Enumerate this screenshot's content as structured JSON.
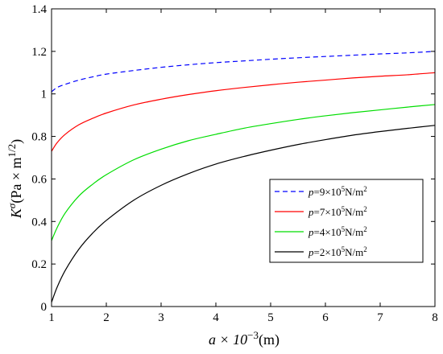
{
  "chart_data": {
    "type": "line",
    "xlabel": {
      "prefix": "a × 10",
      "exp": "−3",
      "suffix": "(m)"
    },
    "ylabel": {
      "prefix": "K",
      "sup": "σ",
      "unit": "(Pa × m",
      "unit_exp": "1/2",
      "unit_close": ")"
    },
    "xlim": [
      1,
      8
    ],
    "ylim": [
      0,
      1.4
    ],
    "xticks": [
      "1",
      "2",
      "3",
      "4",
      "5",
      "6",
      "7",
      "8"
    ],
    "yticks": [
      "0",
      "0.2",
      "0.4",
      "0.6",
      "0.8",
      "1",
      "1.2",
      "1.4"
    ],
    "grid": false,
    "legend_position": "center-right",
    "x": [
      1,
      1.1,
      1.25,
      1.5,
      1.75,
      2,
      2.5,
      3,
      3.5,
      4,
      4.5,
      5,
      5.5,
      6,
      6.5,
      7,
      7.5,
      8
    ],
    "series": [
      {
        "name": "p=9×10⁵N/m²",
        "legend": {
          "p": "p",
          "mid": "=9×10",
          "exp1": "5",
          "unit": "N/m",
          "exp2": "2"
        },
        "color": "#0000ff",
        "dash": true,
        "values": [
          1.01,
          1.03,
          1.045,
          1.065,
          1.08,
          1.093,
          1.11,
          1.125,
          1.137,
          1.147,
          1.155,
          1.163,
          1.17,
          1.176,
          1.182,
          1.188,
          1.193,
          1.2
        ]
      },
      {
        "name": "p=7×10⁵N/m²",
        "legend": {
          "p": "p",
          "mid": "=7×10",
          "exp1": "5",
          "unit": "N/m",
          "exp2": "2"
        },
        "color": "#ff0000",
        "dash": false,
        "values": [
          0.73,
          0.77,
          0.81,
          0.855,
          0.885,
          0.91,
          0.948,
          0.975,
          0.997,
          1.015,
          1.03,
          1.043,
          1.055,
          1.065,
          1.075,
          1.083,
          1.09,
          1.1
        ]
      },
      {
        "name": "p=4×10⁵N/m²",
        "legend": {
          "p": "p",
          "mid": "=4×10",
          "exp1": "5",
          "unit": "N/m",
          "exp2": "2"
        },
        "color": "#00dd00",
        "dash": false,
        "values": [
          0.31,
          0.37,
          0.44,
          0.52,
          0.575,
          0.62,
          0.69,
          0.74,
          0.78,
          0.81,
          0.838,
          0.86,
          0.88,
          0.897,
          0.912,
          0.925,
          0.938,
          0.95
        ]
      },
      {
        "name": "p=2×10⁵N/m²",
        "legend": {
          "p": "p",
          "mid": "=2×10",
          "exp1": "5",
          "unit": "N/m",
          "exp2": "2"
        },
        "color": "#000000",
        "dash": false,
        "values": [
          0.02,
          0.09,
          0.17,
          0.27,
          0.345,
          0.405,
          0.5,
          0.57,
          0.625,
          0.67,
          0.705,
          0.735,
          0.762,
          0.785,
          0.806,
          0.823,
          0.838,
          0.852
        ]
      }
    ]
  }
}
